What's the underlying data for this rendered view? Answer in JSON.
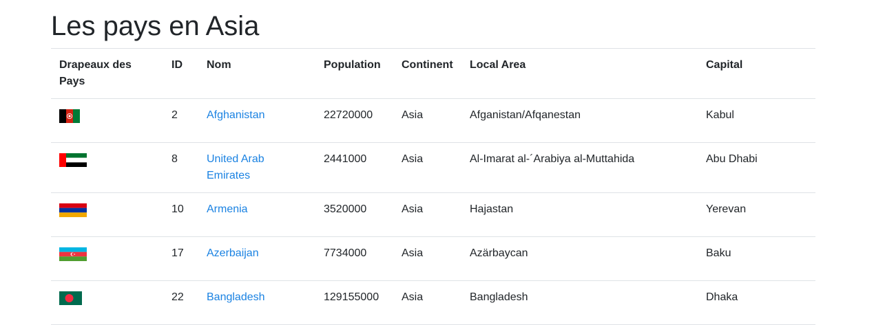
{
  "page": {
    "title": "Les pays en Asia"
  },
  "table": {
    "headers": {
      "flag": "Drapeaux des Pays",
      "id": "ID",
      "name": "Nom",
      "population": "Population",
      "continent": "Continent",
      "local_area": "Local Area",
      "capital": "Capital"
    },
    "rows": [
      {
        "flag_icon": "afghanistan-flag-icon",
        "id": "2",
        "name": "Afghanistan",
        "population": "22720000",
        "continent": "Asia",
        "local_area": "Afganistan/Afqanestan",
        "capital": "Kabul"
      },
      {
        "flag_icon": "uae-flag-icon",
        "id": "8",
        "name": "United Arab Emirates",
        "population": "2441000",
        "continent": "Asia",
        "local_area": "Al-Imarat al-´Arabiya al-Muttahida",
        "capital": "Abu Dhabi"
      },
      {
        "flag_icon": "armenia-flag-icon",
        "id": "10",
        "name": "Armenia",
        "population": "3520000",
        "continent": "Asia",
        "local_area": "Hajastan",
        "capital": "Yerevan"
      },
      {
        "flag_icon": "azerbaijan-flag-icon",
        "id": "17",
        "name": "Azerbaijan",
        "population": "7734000",
        "continent": "Asia",
        "local_area": "Azärbaycan",
        "capital": "Baku"
      },
      {
        "flag_icon": "bangladesh-flag-icon",
        "id": "22",
        "name": "Bangladesh",
        "population": "129155000",
        "continent": "Asia",
        "local_area": "Bangladesh",
        "capital": "Dhaka"
      }
    ]
  },
  "colors": {
    "link": "#1a82e2",
    "border": "#dee2e6",
    "text": "#212529"
  }
}
